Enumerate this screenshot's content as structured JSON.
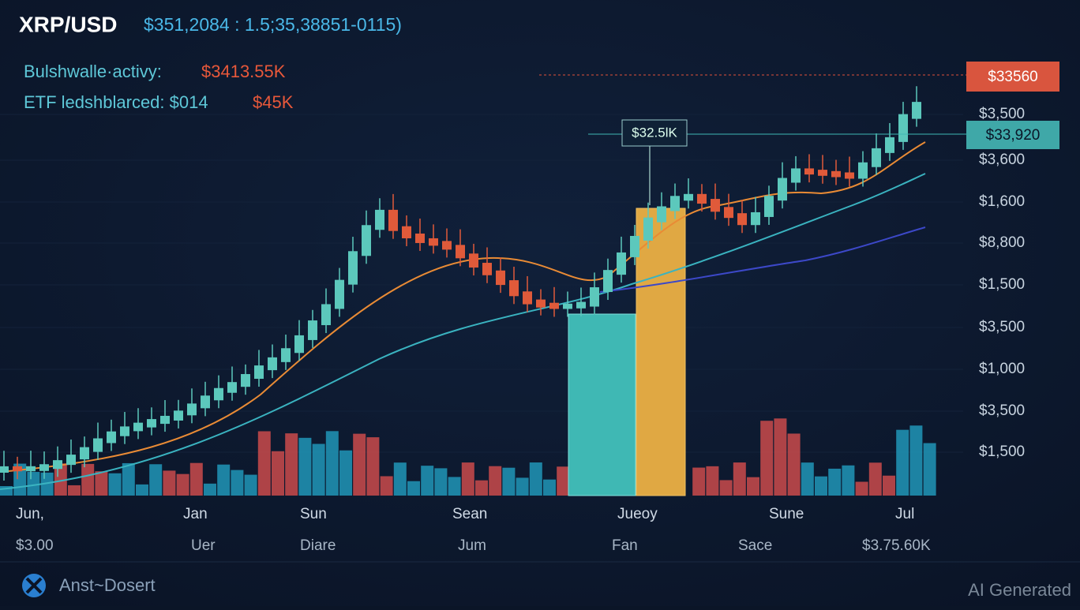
{
  "header": {
    "symbol": "XRP/USD",
    "quote": "$351,2084 : 1.5;35,38851-0115)"
  },
  "stats": [
    {
      "label": "Bulshwalle·activy:",
      "value": "$3413.55K"
    },
    {
      "label": "ETF ledshblarced: $014",
      "value": "$45K"
    }
  ],
  "price_tags": [
    "$33560",
    "$33,920"
  ],
  "annotation": "$32.5lK",
  "price_axis": [
    "$3,500",
    "$3,600",
    "$1,600",
    "$8,800",
    "$1,500",
    "$3,500",
    "$1,000",
    "$3,500",
    "$1,500"
  ],
  "date_row": [
    "Jun,",
    "Jan",
    "Sun",
    "Sean",
    "Jueoy",
    "Sune",
    "Jul"
  ],
  "value_row": [
    "$3.00",
    "Uer",
    "Diare",
    "Jum",
    "Fan",
    "Sace",
    "$3.75.60K"
  ],
  "footer": {
    "brand": "Anst~Dosert",
    "watermark": "AI Generated"
  }
}
